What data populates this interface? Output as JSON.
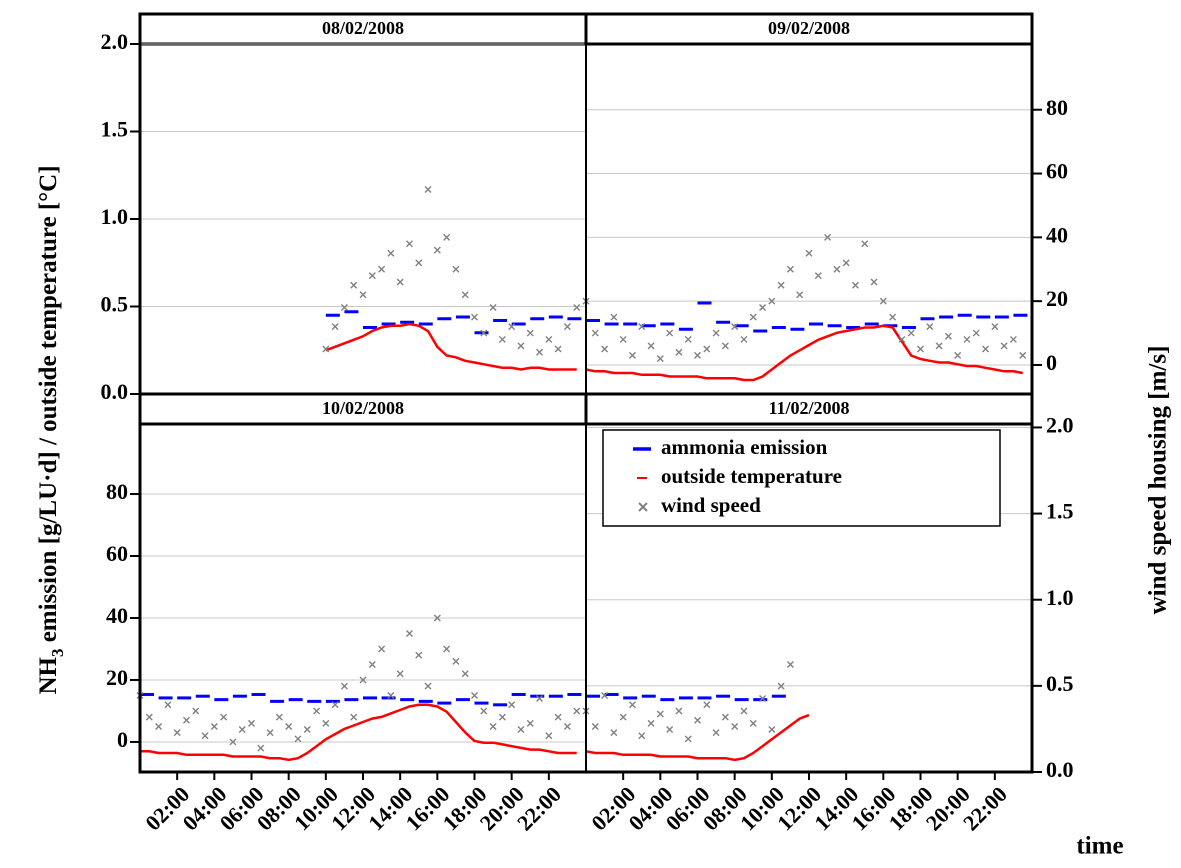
{
  "axes": {
    "y_label_parts": [
      "NH",
      "3",
      " emission [g/LU·d] / outside temperature [°C]"
    ],
    "y2_label": "wind speed housing [m/s]",
    "x_label": "time"
  },
  "chart_data": [
    {
      "type": "line",
      "title": "08/02/2008",
      "x": [
        0,
        0.5,
        1,
        1.5,
        2,
        2.5,
        3,
        3.5,
        4,
        4.5,
        5,
        5.5,
        6,
        6.5,
        7,
        7.5,
        8,
        8.5,
        9,
        9.5,
        10,
        10.5,
        11,
        11.5,
        12,
        12.5,
        13,
        13.5,
        14,
        14.5,
        15,
        15.5,
        16,
        16.5,
        17,
        17.5,
        18,
        18.5,
        19,
        19.5,
        20,
        20.5,
        21,
        21.5,
        22,
        22.5,
        23,
        23.5
      ],
      "xlim": [
        0,
        24
      ],
      "ylim": [
        0,
        2
      ],
      "yticks": [
        {
          "value": 0,
          "label": "0.0"
        },
        0.5,
        {
          "value": 1,
          "label": "1.0"
        },
        1.5,
        {
          "value": 2,
          "label": "2.0"
        }
      ],
      "y2lim": [
        -9.1,
        100.6
      ],
      "grid": true,
      "series": [
        {
          "name": "ammonia emission",
          "type": "scatter",
          "marker": "dash",
          "color": "#0000ff",
          "axis": "y",
          "values": [
            null,
            null,
            null,
            null,
            null,
            null,
            null,
            null,
            null,
            null,
            null,
            null,
            null,
            null,
            null,
            null,
            null,
            null,
            null,
            null,
            0.45,
            null,
            0.47,
            null,
            0.38,
            null,
            0.4,
            null,
            0.41,
            null,
            0.4,
            null,
            0.43,
            null,
            0.44,
            null,
            0.35,
            null,
            0.42,
            null,
            0.4,
            null,
            0.43,
            null,
            0.44,
            null,
            0.43,
            null
          ]
        },
        {
          "name": "outside temperature",
          "type": "line",
          "color": "#ff0000",
          "axis": "y",
          "values": [
            null,
            null,
            null,
            null,
            null,
            null,
            null,
            null,
            null,
            null,
            null,
            null,
            null,
            null,
            null,
            null,
            null,
            null,
            null,
            null,
            0.25,
            0.27,
            0.29,
            0.31,
            0.33,
            0.36,
            0.38,
            0.39,
            0.39,
            0.4,
            0.39,
            0.36,
            0.27,
            0.22,
            0.21,
            0.19,
            0.18,
            0.17,
            0.16,
            0.15,
            0.15,
            0.14,
            0.15,
            0.15,
            0.14,
            0.14,
            0.14,
            0.14
          ]
        },
        {
          "name": "wind speed",
          "type": "scatter",
          "marker": "x",
          "color": "#808080",
          "axis": "y2",
          "values": [
            null,
            null,
            null,
            null,
            null,
            null,
            null,
            null,
            null,
            null,
            null,
            null,
            null,
            null,
            null,
            null,
            null,
            null,
            null,
            null,
            5,
            12,
            18,
            25,
            22,
            28,
            30,
            35,
            26,
            38,
            32,
            55,
            36,
            40,
            30,
            22,
            15,
            10,
            18,
            8,
            12,
            6,
            10,
            4,
            8,
            5,
            12,
            18
          ]
        }
      ]
    },
    {
      "type": "line",
      "title": "09/02/2008",
      "x": [
        0,
        0.5,
        1,
        1.5,
        2,
        2.5,
        3,
        3.5,
        4,
        4.5,
        5,
        5.5,
        6,
        6.5,
        7,
        7.5,
        8,
        8.5,
        9,
        9.5,
        10,
        10.5,
        11,
        11.5,
        12,
        12.5,
        13,
        13.5,
        14,
        14.5,
        15,
        15.5,
        16,
        16.5,
        17,
        17.5,
        18,
        18.5,
        19,
        19.5,
        20,
        20.5,
        21,
        21.5,
        22,
        22.5,
        23,
        23.5
      ],
      "xlim": [
        0,
        24
      ],
      "ylim": [
        0,
        2
      ],
      "y2lim": [
        -9.1,
        100.6
      ],
      "y2ticks": [
        0,
        20,
        40,
        60,
        80
      ],
      "grid": true,
      "series": [
        {
          "name": "ammonia emission",
          "type": "scatter",
          "marker": "dash",
          "color": "#0000ff",
          "axis": "y",
          "values": [
            0.42,
            null,
            0.4,
            null,
            0.4,
            null,
            0.39,
            null,
            0.4,
            null,
            0.37,
            null,
            0.52,
            null,
            0.41,
            null,
            0.39,
            null,
            0.36,
            null,
            0.38,
            null,
            0.37,
            null,
            0.4,
            null,
            0.39,
            null,
            0.38,
            null,
            0.4,
            null,
            0.39,
            null,
            0.38,
            null,
            0.43,
            null,
            0.44,
            null,
            0.45,
            null,
            0.44,
            null,
            0.44,
            null,
            0.45,
            null
          ]
        },
        {
          "name": "outside temperature",
          "type": "line",
          "color": "#ff0000",
          "axis": "y",
          "values": [
            0.14,
            0.13,
            0.13,
            0.12,
            0.12,
            0.12,
            0.11,
            0.11,
            0.11,
            0.1,
            0.1,
            0.1,
            0.1,
            0.09,
            0.09,
            0.09,
            0.09,
            0.08,
            0.08,
            0.1,
            0.14,
            0.18,
            0.22,
            0.25,
            0.28,
            0.31,
            0.33,
            0.35,
            0.36,
            0.37,
            0.38,
            0.38,
            0.39,
            0.38,
            0.3,
            0.22,
            0.2,
            0.19,
            0.18,
            0.18,
            0.17,
            0.16,
            0.16,
            0.15,
            0.14,
            0.13,
            0.13,
            0.12
          ]
        },
        {
          "name": "wind speed",
          "type": "scatter",
          "marker": "x",
          "color": "#808080",
          "axis": "y2",
          "values": [
            20,
            10,
            5,
            15,
            8,
            3,
            12,
            6,
            2,
            10,
            4,
            8,
            3,
            5,
            10,
            6,
            12,
            8,
            15,
            18,
            20,
            25,
            30,
            22,
            35,
            28,
            40,
            30,
            32,
            25,
            38,
            26,
            20,
            15,
            8,
            10,
            5,
            12,
            6,
            9,
            3,
            8,
            10,
            5,
            12,
            6,
            8,
            3
          ]
        }
      ]
    },
    {
      "type": "line",
      "title": "10/02/2008",
      "x": [
        0,
        0.5,
        1,
        1.5,
        2,
        2.5,
        3,
        3.5,
        4,
        4.5,
        5,
        5.5,
        6,
        6.5,
        7,
        7.5,
        8,
        8.5,
        9,
        9.5,
        10,
        10.5,
        11,
        11.5,
        12,
        12.5,
        13,
        13.5,
        14,
        14.5,
        15,
        15.5,
        16,
        16.5,
        17,
        17.5,
        18,
        18.5,
        19,
        19.5,
        20,
        20.5,
        21,
        21.5,
        22,
        22.5,
        23,
        23.5
      ],
      "xlim": [
        0,
        24
      ],
      "xticks": [
        {
          "value": 2,
          "label": "02:00"
        },
        {
          "value": 4,
          "label": "04:00"
        },
        {
          "value": 6,
          "label": "06:00"
        },
        {
          "value": 8,
          "label": "08:00"
        },
        {
          "value": 10,
          "label": "10:00"
        },
        {
          "value": 12,
          "label": "12:00"
        },
        {
          "value": 14,
          "label": "14:00"
        },
        {
          "value": 16,
          "label": "16:00"
        },
        {
          "value": 18,
          "label": "18:00"
        },
        {
          "value": 20,
          "label": "20:00"
        },
        {
          "value": 22,
          "label": "22:00"
        }
      ],
      "ylim": [
        -9.7,
        102.6
      ],
      "yticks": [
        0,
        20,
        40,
        60,
        80
      ],
      "y2lim": [
        0,
        2.02
      ],
      "grid": true,
      "series": [
        {
          "name": "ammonia emission",
          "type": "scatter",
          "marker": "dash",
          "color": "#0000ff",
          "axis": "y2",
          "values": [
            0.45,
            null,
            0.43,
            null,
            0.43,
            null,
            0.44,
            null,
            0.42,
            null,
            0.44,
            null,
            0.45,
            null,
            0.41,
            null,
            0.42,
            null,
            0.41,
            null,
            0.41,
            null,
            0.42,
            null,
            0.43,
            null,
            0.43,
            null,
            0.42,
            null,
            0.41,
            null,
            0.4,
            null,
            0.42,
            null,
            0.4,
            null,
            0.39,
            null,
            0.45,
            null,
            0.44,
            null,
            0.44,
            null,
            0.45,
            null
          ]
        },
        {
          "name": "outside temperature",
          "type": "line",
          "color": "#ff0000",
          "axis": "y2",
          "values": [
            0.12,
            0.12,
            0.11,
            0.11,
            0.11,
            0.1,
            0.1,
            0.1,
            0.1,
            0.1,
            0.09,
            0.09,
            0.09,
            0.09,
            0.08,
            0.08,
            0.07,
            0.08,
            0.11,
            0.15,
            0.19,
            0.22,
            0.25,
            0.27,
            0.29,
            0.31,
            0.32,
            0.34,
            0.36,
            0.38,
            0.39,
            0.39,
            0.38,
            0.35,
            0.29,
            0.23,
            0.18,
            0.17,
            0.17,
            0.16,
            0.15,
            0.14,
            0.13,
            0.13,
            0.12,
            0.11,
            0.11,
            0.11
          ]
        },
        {
          "name": "wind speed",
          "type": "scatter",
          "marker": "x",
          "color": "#808080",
          "axis": "y",
          "values": [
            15,
            8,
            5,
            12,
            3,
            7,
            10,
            2,
            5,
            8,
            0,
            4,
            6,
            -2,
            3,
            8,
            5,
            1,
            4,
            10,
            6,
            12,
            18,
            8,
            20,
            25,
            30,
            15,
            22,
            35,
            28,
            18,
            40,
            30,
            26,
            22,
            15,
            10,
            5,
            8,
            12,
            4,
            6,
            14,
            2,
            8,
            5,
            10
          ]
        }
      ]
    },
    {
      "type": "line",
      "title": "11/02/2008",
      "x": [
        0,
        0.5,
        1,
        1.5,
        2,
        2.5,
        3,
        3.5,
        4,
        4.5,
        5,
        5.5,
        6,
        6.5,
        7,
        7.5,
        8,
        8.5,
        9,
        9.5,
        10,
        10.5,
        11,
        11.5,
        12,
        12.5,
        13,
        13.5,
        14,
        14.5,
        15,
        15.5,
        16,
        16.5,
        17,
        17.5,
        18,
        18.5,
        19,
        19.5,
        20,
        20.5,
        21,
        21.5,
        22,
        22.5,
        23,
        23.5
      ],
      "xlim": [
        0,
        24
      ],
      "xticks": [
        {
          "value": 2,
          "label": "02:00"
        },
        {
          "value": 4,
          "label": "04:00"
        },
        {
          "value": 6,
          "label": "06:00"
        },
        {
          "value": 8,
          "label": "08:00"
        },
        {
          "value": 10,
          "label": "10:00"
        },
        {
          "value": 12,
          "label": "12:00"
        },
        {
          "value": 14,
          "label": "14:00"
        },
        {
          "value": 16,
          "label": "16:00"
        },
        {
          "value": 18,
          "label": "18:00"
        },
        {
          "value": 20,
          "label": "20:00"
        },
        {
          "value": 22,
          "label": "22:00"
        }
      ],
      "ylim": [
        -9.7,
        102.6
      ],
      "y2lim": [
        0,
        2.02
      ],
      "y2ticks": [
        {
          "value": 0,
          "label": "0.0"
        },
        0.5,
        {
          "value": 1,
          "label": "1.0"
        },
        1.5,
        {
          "value": 2,
          "label": "2.0"
        }
      ],
      "grid": true,
      "legend": "upper right",
      "series": [
        {
          "name": "ammonia emission",
          "type": "scatter",
          "marker": "dash",
          "color": "#0000ff",
          "axis": "y2",
          "values": [
            0.44,
            null,
            0.45,
            null,
            0.43,
            null,
            0.44,
            null,
            0.42,
            null,
            0.43,
            null,
            0.43,
            null,
            0.44,
            null,
            0.42,
            null,
            0.42,
            null,
            0.44,
            null,
            null,
            null,
            null,
            null,
            null,
            null,
            null,
            null,
            null,
            null,
            null,
            null,
            null,
            null,
            null,
            null,
            null,
            null,
            null,
            null,
            null,
            null,
            null,
            null,
            null,
            null
          ]
        },
        {
          "name": "outside temperature",
          "type": "line",
          "color": "#ff0000",
          "axis": "y2",
          "values": [
            0.12,
            0.11,
            0.11,
            0.11,
            0.1,
            0.1,
            0.1,
            0.1,
            0.09,
            0.09,
            0.09,
            0.09,
            0.08,
            0.08,
            0.08,
            0.08,
            0.07,
            0.08,
            0.11,
            0.15,
            0.19,
            0.23,
            0.27,
            0.31,
            0.33,
            null,
            null,
            null,
            null,
            null,
            null,
            null,
            null,
            null,
            null,
            null,
            null,
            null,
            null,
            null,
            null,
            null,
            null,
            null,
            null,
            null,
            null,
            null
          ]
        },
        {
          "name": "wind speed",
          "type": "scatter",
          "marker": "x",
          "color": "#808080",
          "axis": "y",
          "values": [
            10,
            5,
            15,
            3,
            8,
            12,
            2,
            6,
            9,
            4,
            10,
            1,
            7,
            12,
            3,
            8,
            5,
            10,
            6,
            14,
            4,
            18,
            25,
            null,
            null,
            null,
            null,
            null,
            null,
            null,
            null,
            null,
            null,
            null,
            null,
            null,
            null,
            null,
            null,
            null,
            null,
            null,
            null,
            null,
            null,
            null,
            null,
            null
          ]
        }
      ]
    }
  ]
}
